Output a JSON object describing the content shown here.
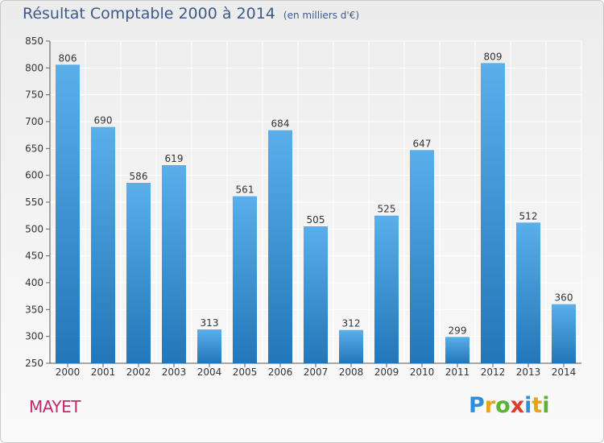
{
  "header": {
    "title": "Résultat Comptable 2000 à 2014",
    "subtitle": "(en milliers d'€)"
  },
  "footer": {
    "town": "MAYET",
    "logo_text": "Proxiti",
    "logo_letters": [
      {
        "ch": "P",
        "color": "#2f8fd8"
      },
      {
        "ch": "r",
        "color": "#e8a21b"
      },
      {
        "ch": "o",
        "color": "#5bb431"
      },
      {
        "ch": "x",
        "color": "#e03b2f"
      },
      {
        "ch": "i",
        "color": "#2f8fd8"
      },
      {
        "ch": "t",
        "color": "#e8a21b"
      },
      {
        "ch": "i",
        "color": "#5bb431"
      }
    ]
  },
  "colors": {
    "bar_top": "#5aaeea",
    "bar_bottom": "#2377b9",
    "grid": "#ffffff",
    "axis_text": "#333333"
  },
  "chart_data": {
    "type": "bar",
    "title": "Résultat Comptable 2000 à 2014",
    "subtitle": "(en milliers d'€)",
    "xlabel": "",
    "ylabel": "",
    "categories": [
      "2000",
      "2001",
      "2002",
      "2003",
      "2004",
      "2005",
      "2006",
      "2007",
      "2008",
      "2009",
      "2010",
      "2011",
      "2012",
      "2013",
      "2014"
    ],
    "values": [
      806,
      690,
      586,
      619,
      313,
      561,
      684,
      505,
      312,
      525,
      647,
      299,
      809,
      512,
      360
    ],
    "ylim": [
      250,
      850
    ],
    "yticks": [
      250,
      300,
      350,
      400,
      450,
      500,
      550,
      600,
      650,
      700,
      750,
      800,
      850
    ],
    "grid": true,
    "data_labels": true
  }
}
